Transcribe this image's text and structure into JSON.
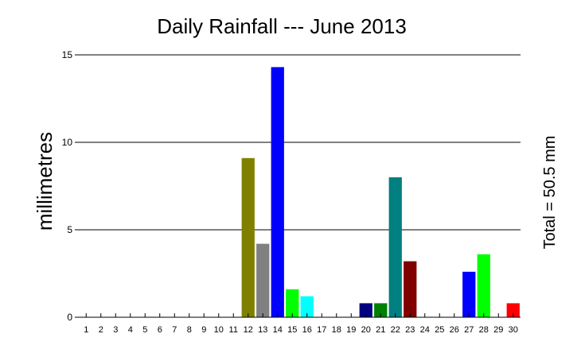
{
  "chart_data": {
    "type": "bar",
    "title": "Daily Rainfall --- June 2013",
    "ylabel": "millimetres",
    "xlabel": "",
    "annotation": "Total = 50.5 mm",
    "ylim": [
      0,
      15
    ],
    "yticks": [
      "0",
      "5",
      "10",
      "15"
    ],
    "grid": true,
    "categories": [
      "1",
      "2",
      "3",
      "4",
      "5",
      "6",
      "7",
      "8",
      "9",
      "10",
      "11",
      "12",
      "13",
      "14",
      "15",
      "16",
      "17",
      "18",
      "19",
      "20",
      "21",
      "22",
      "23",
      "24",
      "25",
      "26",
      "27",
      "28",
      "29",
      "30"
    ],
    "values": [
      0,
      0,
      0,
      0,
      0,
      0,
      0,
      0,
      0,
      0,
      0,
      9.1,
      4.2,
      14.3,
      1.6,
      1.2,
      0,
      0,
      0,
      0.8,
      0.8,
      8.0,
      3.2,
      0,
      0,
      0,
      2.6,
      3.6,
      0,
      0.8
    ],
    "colors": [
      "#000000",
      "#000000",
      "#000000",
      "#000000",
      "#000000",
      "#000000",
      "#000000",
      "#000000",
      "#000000",
      "#000000",
      "#000000",
      "#808000",
      "#808080",
      "#0000ff",
      "#00ff00",
      "#00ffff",
      "#000000",
      "#000000",
      "#000000",
      "#000080",
      "#008000",
      "#008080",
      "#800000",
      "#000000",
      "#000000",
      "#000000",
      "#0000ff",
      "#00ff00",
      "#000000",
      "#ff0000"
    ]
  }
}
